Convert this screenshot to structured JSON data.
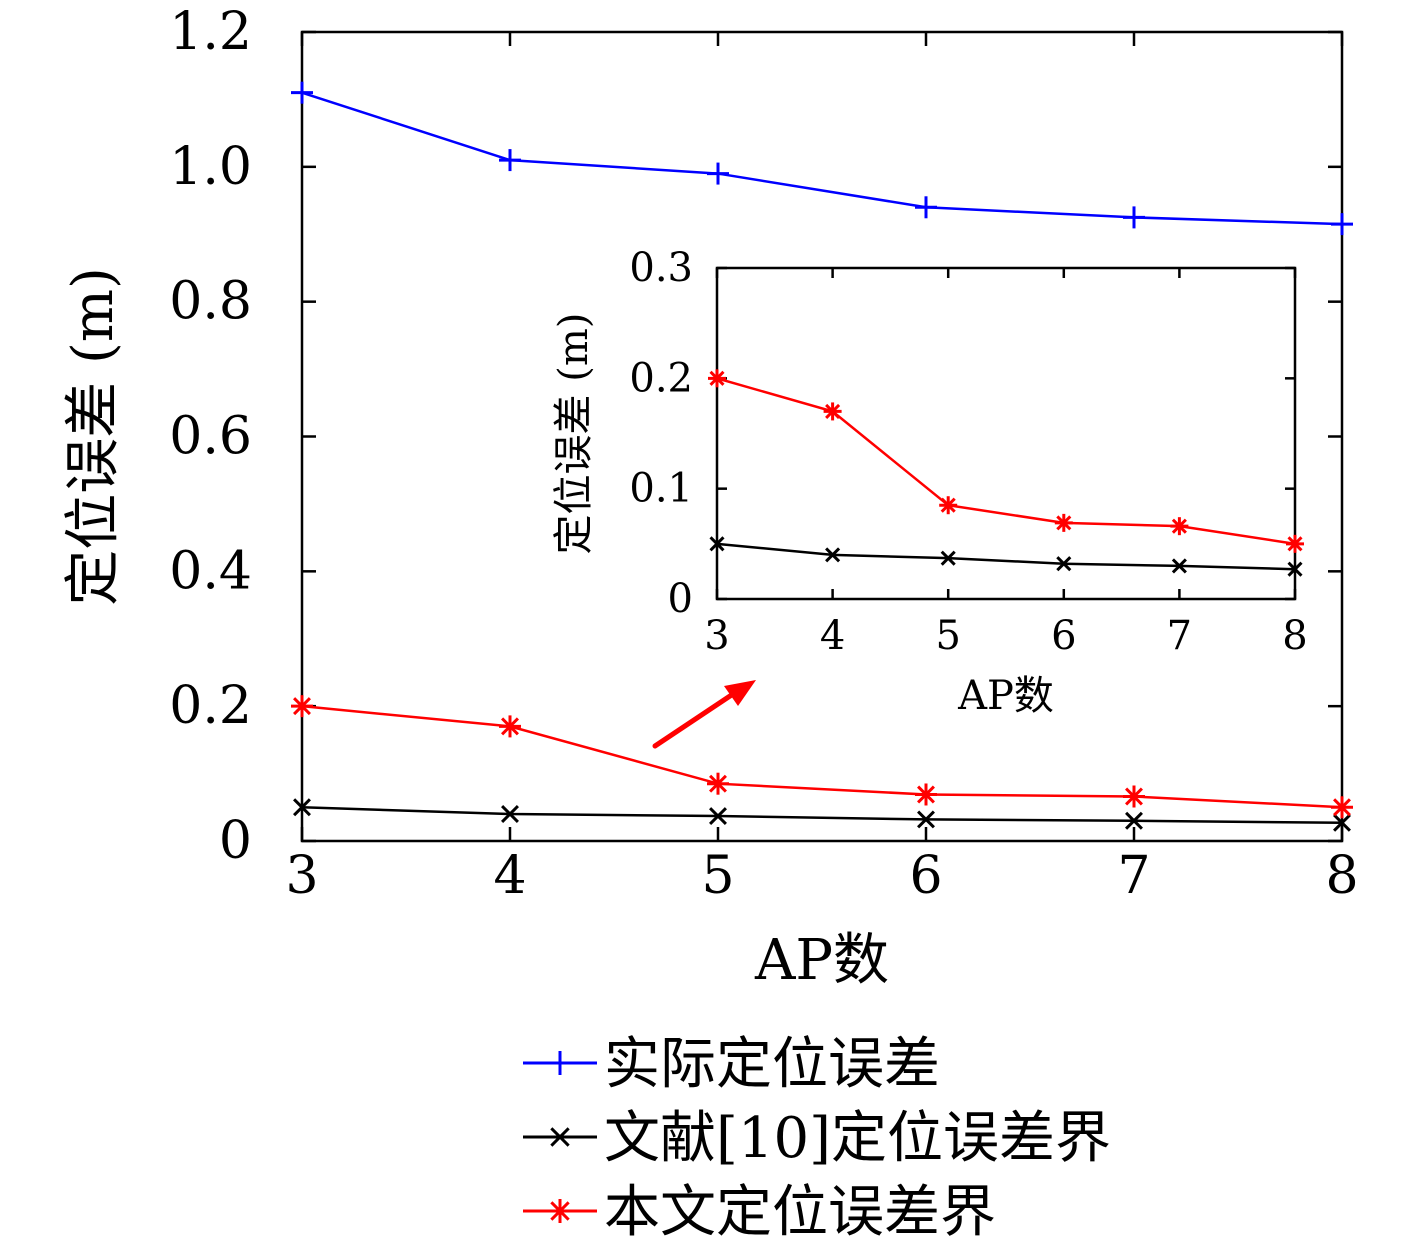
{
  "chart_data": [
    {
      "type": "line",
      "xlabel": "AP数",
      "ylabel": "定位误差 (m)",
      "x": [
        3,
        4,
        5,
        6,
        7,
        8
      ],
      "xlim": [
        3,
        8
      ],
      "ylim": [
        0,
        1.2
      ],
      "xticks": [
        "3",
        "4",
        "5",
        "6",
        "7",
        "8"
      ],
      "yticks": [
        "0",
        "0.2",
        "0.4",
        "0.6",
        "0.8",
        "1.0",
        "1.2"
      ],
      "grid": false,
      "series": [
        {
          "name": "实际定位误差",
          "color": "#0000ff",
          "marker": "plus",
          "values": [
            1.11,
            1.01,
            0.99,
            0.94,
            0.925,
            0.915
          ]
        },
        {
          "name": "文献[10]定位误差界",
          "color": "#000000",
          "marker": "x",
          "values": [
            0.05,
            0.04,
            0.037,
            0.032,
            0.03,
            0.027
          ]
        },
        {
          "name": "本文定位误差界",
          "color": "#ff0000",
          "marker": "asterisk",
          "values": [
            0.2,
            0.17,
            0.085,
            0.069,
            0.066,
            0.05
          ]
        }
      ],
      "legend": {
        "placement": "bottom"
      }
    },
    {
      "type": "line",
      "role": "inset",
      "xlabel": "AP数",
      "ylabel": "定位误差 (m)",
      "x": [
        3,
        4,
        5,
        6,
        7,
        8
      ],
      "xlim": [
        3,
        8
      ],
      "ylim": [
        0,
        0.3
      ],
      "xticks": [
        "3",
        "4",
        "5",
        "6",
        "7",
        "8"
      ],
      "yticks": [
        "0",
        "0.1",
        "0.2",
        "0.3"
      ],
      "grid": false,
      "series": [
        {
          "color": "#000000",
          "marker": "x",
          "values": [
            0.05,
            0.04,
            0.037,
            0.032,
            0.03,
            0.027
          ]
        },
        {
          "color": "#ff0000",
          "marker": "asterisk",
          "values": [
            0.2,
            0.17,
            0.085,
            0.069,
            0.066,
            0.05
          ]
        }
      ]
    }
  ]
}
